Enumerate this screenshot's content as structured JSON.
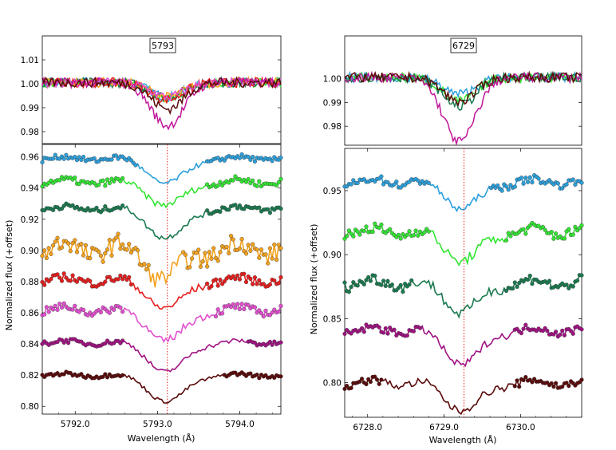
{
  "figure": {
    "shared_xlabel": "Wavelength (Å)",
    "shared_ylabel": "Normalized flux (+offset)"
  },
  "chart_data": [
    {
      "type": "line",
      "panel": "left-top",
      "title": "5793",
      "xlim": [
        5791.6,
        5794.5
      ],
      "ylim": [
        0.975,
        1.02
      ],
      "yticks": [
        "1.01",
        "1.00",
        "0.99",
        "0.98"
      ],
      "ytick_values": [
        1.01,
        1.0,
        0.99,
        0.98
      ],
      "line_center": 5793.12,
      "series": [
        {
          "name": "s1",
          "color": "#2ca0dc",
          "depth": 0.006,
          "x": [
            5791.6,
            5792.6,
            5793.1,
            5793.6,
            5794.5
          ],
          "y": [
            1.001,
            0.999,
            0.994,
            0.999,
            1.001
          ]
        },
        {
          "name": "s2",
          "color": "#33e533",
          "depth": 0.007,
          "x": [
            5791.6,
            5792.6,
            5793.1,
            5793.6,
            5794.5
          ],
          "y": [
            1.002,
            0.999,
            0.993,
            0.999,
            1.002
          ]
        },
        {
          "name": "s3",
          "color": "#1a7a4f",
          "depth": 0.006,
          "x": [
            5791.6,
            5792.6,
            5793.1,
            5793.6,
            5794.5
          ],
          "y": [
            1.0,
            0.998,
            0.994,
            0.998,
            1.0
          ]
        },
        {
          "name": "s4",
          "color": "#f4a21d",
          "depth": 0.006,
          "x": [
            5791.6,
            5792.6,
            5793.1,
            5793.6,
            5794.5
          ],
          "y": [
            1.003,
            1.0,
            0.994,
            1.0,
            1.003
          ]
        },
        {
          "name": "s5",
          "color": "#e61e1e",
          "depth": 0.007,
          "x": [
            5791.6,
            5792.6,
            5793.1,
            5793.6,
            5794.5
          ],
          "y": [
            1.002,
            0.999,
            0.993,
            0.999,
            1.002
          ]
        },
        {
          "name": "s6",
          "color": "#e24fcf",
          "depth": 0.006,
          "x": [
            5791.6,
            5792.6,
            5793.1,
            5793.6,
            5794.5
          ],
          "y": [
            1.002,
            0.999,
            0.994,
            0.999,
            1.002
          ]
        },
        {
          "name": "s7",
          "color": "#c0169a",
          "depth": 0.018,
          "x": [
            5791.6,
            5792.6,
            5793.1,
            5793.6,
            5794.5
          ],
          "y": [
            1.0,
            0.995,
            0.982,
            0.995,
            1.0
          ]
        },
        {
          "name": "s8",
          "color": "#5a0a0a",
          "depth": 0.011,
          "x": [
            5791.6,
            5792.6,
            5793.1,
            5793.6,
            5794.5
          ],
          "y": [
            0.999,
            0.996,
            0.988,
            0.996,
            0.998
          ]
        }
      ]
    },
    {
      "type": "line",
      "panel": "left-bottom",
      "xlabel": "Wavelength (Å)",
      "ylabel": "Normalized flux (+offset)",
      "xlim": [
        5791.6,
        5794.5
      ],
      "ylim": [
        0.795,
        0.968
      ],
      "xticks": [
        "5792.0",
        "5793.0",
        "5794.0"
      ],
      "xtick_values": [
        5792.0,
        5793.0,
        5794.0
      ],
      "yticks": [
        "0.96",
        "0.94",
        "0.92",
        "0.90",
        "0.88",
        "0.86",
        "0.84",
        "0.82",
        "0.80"
      ],
      "ytick_values": [
        0.96,
        0.94,
        0.92,
        0.9,
        0.88,
        0.86,
        0.84,
        0.82,
        0.8
      ],
      "line_center": 5793.12,
      "series": [
        {
          "name": "s1",
          "color": "#2ca0dc",
          "continuum": 0.959,
          "depth": 0.016,
          "noise": 0.0016,
          "clean_range": [
            5792.75,
            5793.6
          ]
        },
        {
          "name": "s2",
          "color": "#33e533",
          "continuum": 0.944,
          "depth": 0.015,
          "noise": 0.002,
          "clean_range": [
            5792.6,
            5793.6
          ]
        },
        {
          "name": "s3",
          "color": "#1a7a4f",
          "continuum": 0.927,
          "depth": 0.019,
          "noise": 0.0018,
          "clean_range": [
            5792.6,
            5793.6
          ]
        },
        {
          "name": "s4",
          "color": "#f4a21d",
          "continuum": 0.901,
          "depth": 0.018,
          "noise": 0.006,
          "clean_range": [
            5792.9,
            5793.3
          ]
        },
        {
          "name": "s5",
          "color": "#e61e1e",
          "continuum": 0.881,
          "depth": 0.018,
          "noise": 0.0025,
          "clean_range": [
            5792.7,
            5793.6
          ]
        },
        {
          "name": "s6",
          "color": "#e24fcf",
          "continuum": 0.862,
          "depth": 0.02,
          "noise": 0.0025,
          "clean_range": [
            5792.6,
            5793.7
          ]
        },
        {
          "name": "s7",
          "color": "#a01282",
          "continuum": 0.841,
          "depth": 0.019,
          "noise": 0.0015,
          "clean_range": [
            5792.6,
            5794.1
          ]
        },
        {
          "name": "s8",
          "color": "#5a0a0a",
          "continuum": 0.82,
          "depth": 0.017,
          "noise": 0.0012,
          "clean_range": [
            5792.6,
            5793.8
          ]
        }
      ]
    },
    {
      "type": "line",
      "panel": "right-top",
      "title": "6729",
      "xlim": [
        6727.7,
        6730.8
      ],
      "ylim": [
        0.972,
        1.018
      ],
      "yticks": [
        "1.00",
        "0.99",
        "0.98"
      ],
      "ytick_values": [
        1.0,
        0.99,
        0.98
      ],
      "line_center": 6729.2,
      "series": [
        {
          "name": "s1",
          "color": "#2ca0dc",
          "depth": 0.007,
          "x": [
            6727.7,
            6729.2,
            6730.8
          ],
          "y": [
            1.0,
            0.993,
            1.0
          ]
        },
        {
          "name": "s2",
          "color": "#33e533",
          "depth": 0.01,
          "x": [
            6727.7,
            6729.2,
            6730.8
          ],
          "y": [
            1.001,
            0.991,
            1.001
          ]
        },
        {
          "name": "s3",
          "color": "#1a7a4f",
          "depth": 0.012,
          "x": [
            6727.7,
            6729.2,
            6730.8
          ],
          "y": [
            1.0,
            0.988,
            1.0
          ]
        },
        {
          "name": "s4",
          "color": "#c0169a",
          "depth": 0.027,
          "x": [
            6727.7,
            6729.2,
            6730.8
          ],
          "y": [
            1.004,
            0.976,
            1.004
          ]
        },
        {
          "name": "s5",
          "color": "#5a0a0a",
          "depth": 0.01,
          "x": [
            6727.7,
            6729.2,
            6730.8
          ],
          "y": [
            0.999,
            0.99,
            1.002
          ]
        }
      ]
    },
    {
      "type": "line",
      "panel": "right-bottom",
      "xlabel": "Wavelength (Å)",
      "ylabel": "Normalized flux (+offset)",
      "xlim": [
        6727.7,
        6730.8
      ],
      "ylim": [
        0.773,
        0.983
      ],
      "xticks": [
        "6728.0",
        "6729.0",
        "6730.0"
      ],
      "xtick_values": [
        6728.0,
        6729.0,
        6730.0
      ],
      "yticks": [
        "0.95",
        "0.90",
        "0.85",
        "0.80"
      ],
      "ytick_values": [
        0.95,
        0.9,
        0.85,
        0.8
      ],
      "line_center": 6729.26,
      "series": [
        {
          "name": "s1",
          "color": "#2ca0dc",
          "continuum": 0.957,
          "depth": 0.02,
          "noise": 0.003,
          "clean_range": [
            6728.8,
            6729.6
          ]
        },
        {
          "name": "s2",
          "color": "#33e533",
          "continuum": 0.918,
          "depth": 0.022,
          "noise": 0.004,
          "clean_range": [
            6728.8,
            6729.8
          ]
        },
        {
          "name": "s3",
          "color": "#1a7a4f",
          "continuum": 0.878,
          "depth": 0.022,
          "noise": 0.004,
          "clean_range": [
            6728.6,
            6729.8
          ]
        },
        {
          "name": "s4",
          "color": "#a01282",
          "continuum": 0.841,
          "depth": 0.026,
          "noise": 0.003,
          "clean_range": [
            6728.7,
            6729.9
          ]
        },
        {
          "name": "s5",
          "color": "#5a0a0a",
          "continuum": 0.8,
          "depth": 0.021,
          "noise": 0.003,
          "clean_range": [
            6728.2,
            6729.9
          ]
        }
      ]
    }
  ]
}
